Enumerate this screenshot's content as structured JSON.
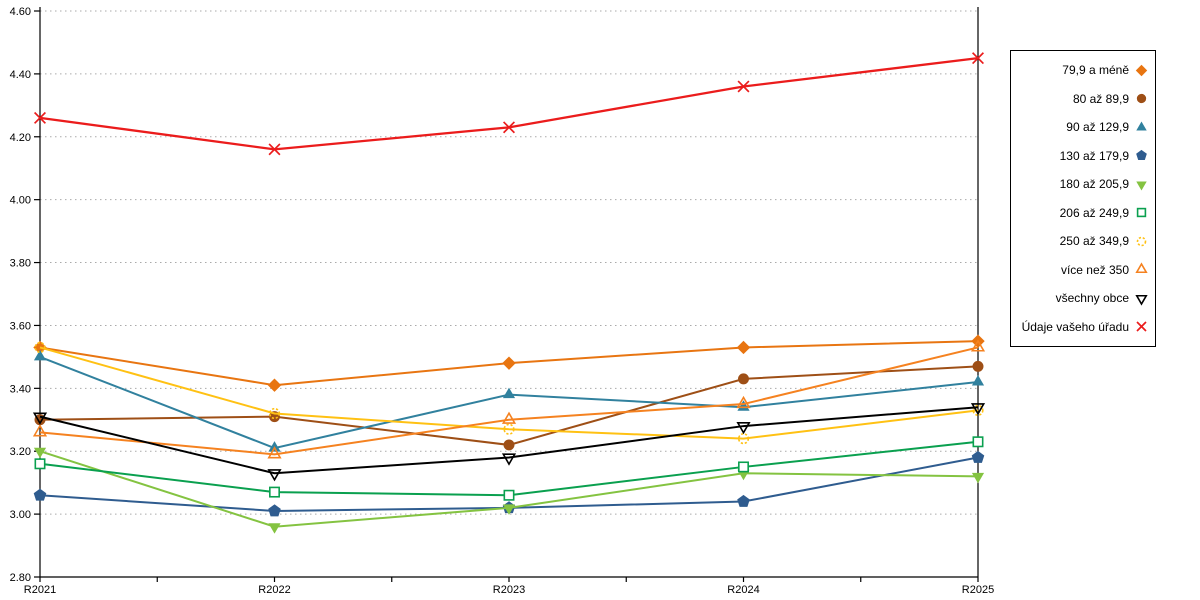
{
  "page": {
    "background": "#FFFFFF"
  },
  "chart_data": {
    "type": "line",
    "title": "",
    "xlabel": "",
    "ylabel": "",
    "categories": [
      "R2021",
      "R2022",
      "R2023",
      "R2024",
      "R2025"
    ],
    "ylim": [
      2.8,
      4.6
    ],
    "y_tick_step": 0.2,
    "y_tick_labels": [
      "2.80",
      "3.00",
      "3.20",
      "3.40",
      "3.60",
      "3.80",
      "4.00",
      "4.20",
      "4.40",
      "4.60"
    ],
    "grid": "horizontal-dotted",
    "grid_color": "#AAAAAA",
    "axis_color": "#000000",
    "legend_position": "right",
    "series": [
      {
        "name": "79,9 a méně",
        "marker": "diamond",
        "color": "#E87511",
        "values": [
          3.53,
          3.41,
          3.48,
          3.53,
          3.55
        ]
      },
      {
        "name": "80 až 89,9",
        "marker": "circle",
        "color": "#9E4F16",
        "values": [
          3.3,
          3.31,
          3.22,
          3.43,
          3.47
        ]
      },
      {
        "name": "90 až 129,9",
        "marker": "triangle-up",
        "color": "#31819E",
        "values": [
          3.5,
          3.21,
          3.38,
          3.34,
          3.42
        ]
      },
      {
        "name": "130 až 179,9",
        "marker": "pentagon",
        "color": "#2F5C8F",
        "values": [
          3.06,
          3.01,
          3.02,
          3.04,
          3.18
        ]
      },
      {
        "name": "180 až 205,9",
        "marker": "triangle-down",
        "color": "#84C341",
        "values": [
          3.2,
          2.96,
          3.02,
          3.13,
          3.12
        ]
      },
      {
        "name": "206 až 249,9",
        "marker": "square-open",
        "color": "#0AA04F",
        "values": [
          3.16,
          3.07,
          3.06,
          3.15,
          3.23
        ]
      },
      {
        "name": "250 až 349,9",
        "marker": "circle-open-dashed",
        "color": "#FFC113",
        "values": [
          3.53,
          3.32,
          3.27,
          3.24,
          3.33
        ]
      },
      {
        "name": "více než 350",
        "marker": "triangle-up-open",
        "color": "#F58220",
        "values": [
          3.26,
          3.19,
          3.3,
          3.35,
          3.53
        ]
      },
      {
        "name": "všechny obce",
        "marker": "triangle-down-open",
        "color": "#000000",
        "values": [
          3.31,
          3.13,
          3.18,
          3.28,
          3.34
        ]
      },
      {
        "name": "Údaje vašeho úřadu",
        "marker": "x-cross",
        "color": "#EB1C1C",
        "values": [
          4.26,
          4.16,
          4.23,
          4.36,
          4.45
        ]
      }
    ]
  }
}
